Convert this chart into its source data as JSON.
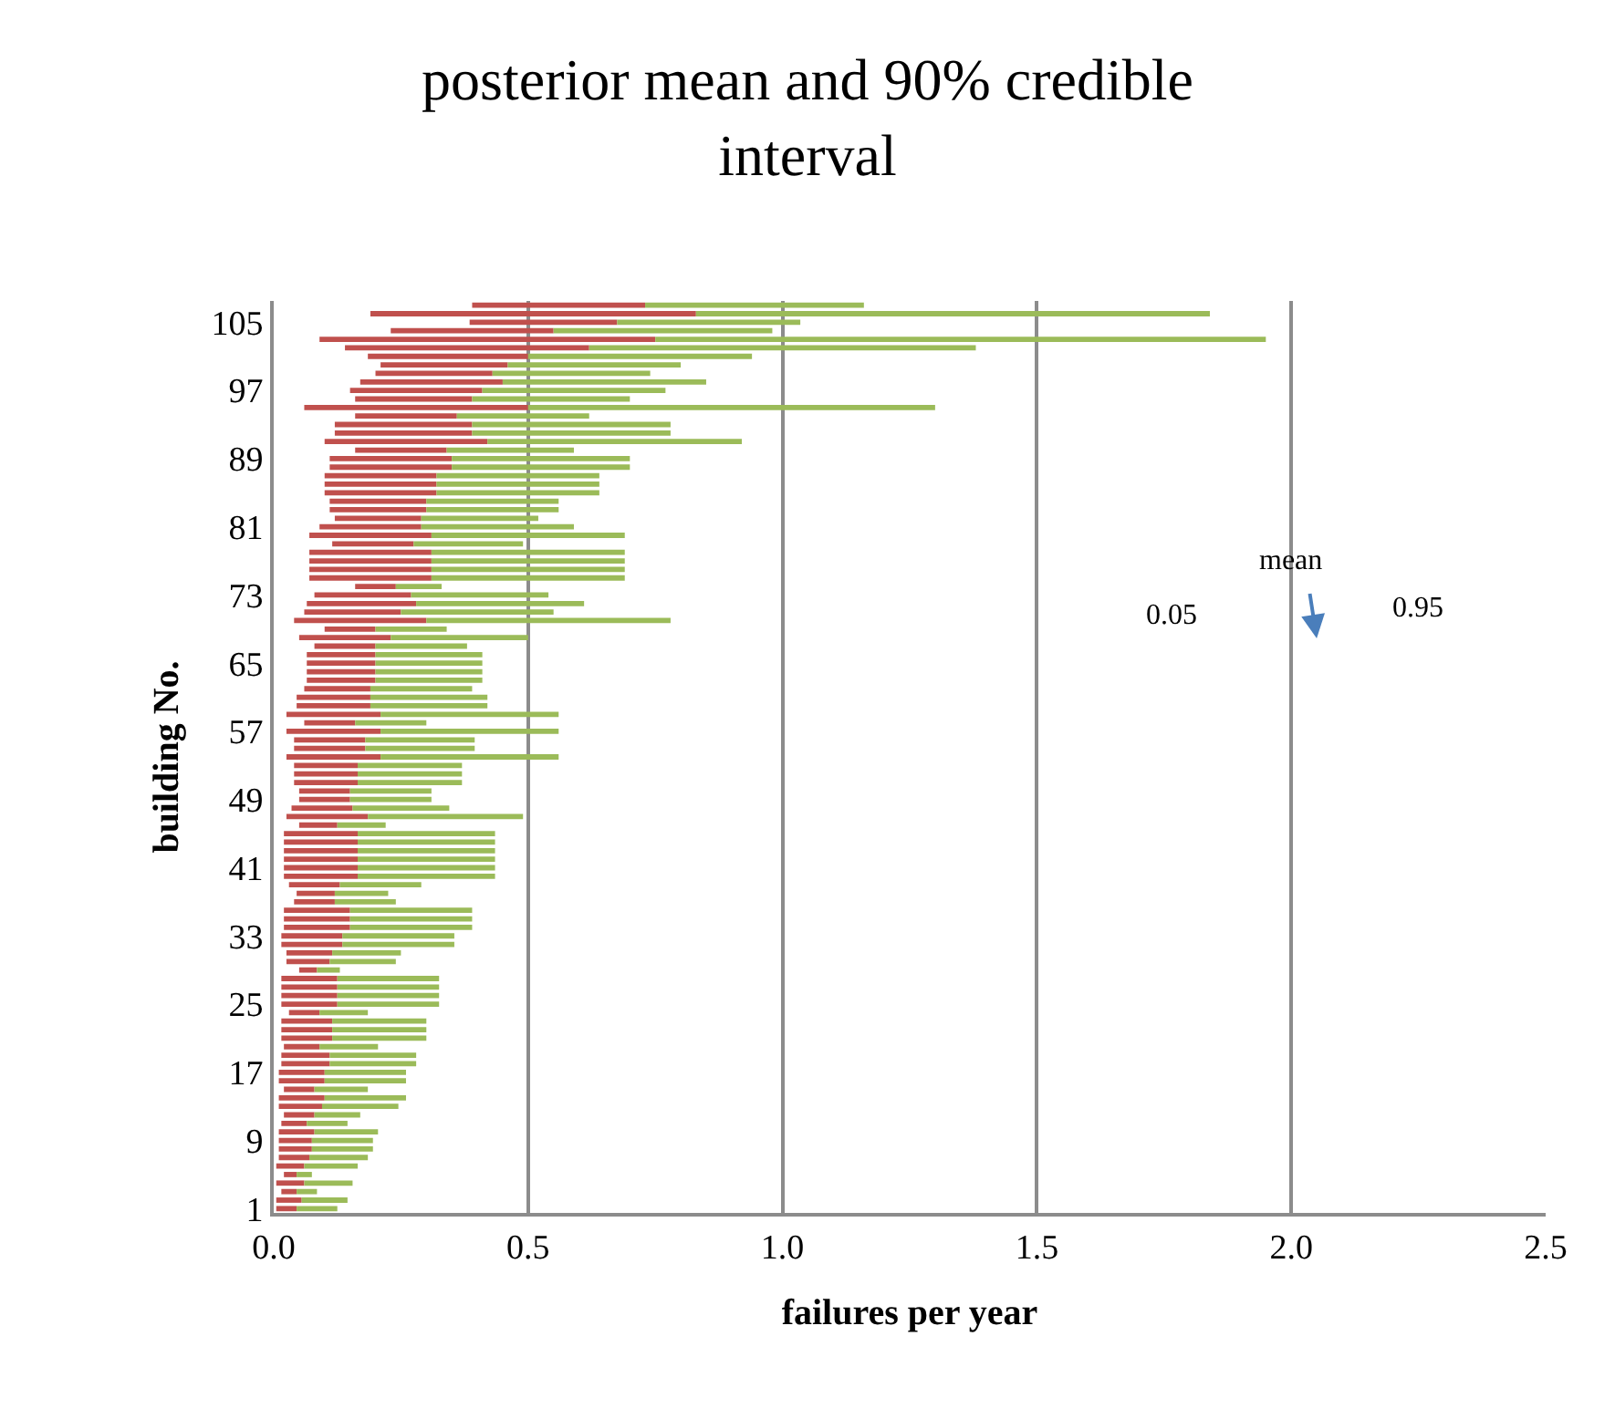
{
  "chart_data": {
    "type": "bar",
    "orientation": "horizontal",
    "title": "posterior mean and 90% credible interval",
    "xlabel": "failures per year",
    "ylabel": "building No.",
    "categories": [
      null,
      null,
      "105",
      null,
      null,
      null,
      null,
      null,
      null,
      null,
      "97",
      null,
      null,
      null,
      null,
      null,
      null,
      null,
      "89",
      null,
      null,
      null,
      null,
      null,
      null,
      null,
      "81",
      null,
      null,
      null,
      null,
      null,
      null,
      null,
      "73",
      null,
      null,
      null,
      null,
      null,
      null,
      null,
      "65",
      null,
      null,
      null,
      null,
      null,
      null,
      null,
      "57",
      null,
      null,
      null,
      null,
      null,
      null,
      null,
      "49",
      null,
      null,
      null,
      null,
      null,
      null,
      null,
      "41",
      null,
      null,
      null,
      null,
      null,
      null,
      null,
      "33",
      null,
      null,
      null,
      null,
      null,
      null,
      null,
      "25",
      null,
      null,
      null,
      null,
      null,
      null,
      null,
      "17",
      null,
      null,
      null,
      null,
      null,
      null,
      null,
      "9",
      null,
      null,
      null,
      null,
      null,
      null,
      null,
      "1"
    ],
    "series": [
      {
        "color": "#c0504d",
        "base": [
          0.39,
          0.19,
          0.385,
          0.23,
          0.09,
          0.14,
          0.185,
          0.21,
          0.2,
          0.17,
          0.15,
          0.16,
          0.06,
          0.16,
          0.12,
          0.12,
          0.1,
          0.16,
          0.11,
          0.11,
          0.1,
          0.1,
          0.1,
          0.11,
          0.11,
          0.12,
          0.09,
          0.07,
          0.115,
          0.07,
          0.07,
          0.07,
          0.07,
          0.16,
          0.08,
          0.065,
          0.06,
          0.04,
          0.1,
          0.05,
          0.08,
          0.065,
          0.065,
          0.065,
          0.065,
          0.06,
          0.045,
          0.045,
          0.025,
          0.06,
          0.025,
          0.04,
          0.04,
          0.025,
          0.04,
          0.04,
          0.04,
          0.05,
          0.05,
          0.035,
          0.025,
          0.05,
          0.02,
          0.02,
          0.02,
          0.02,
          0.02,
          0.02,
          0.03,
          0.045,
          0.04,
          0.02,
          0.02,
          0.02,
          0.015,
          0.015,
          0.025,
          0.025,
          0.05,
          0.015,
          0.015,
          0.015,
          0.015,
          0.03,
          0.015,
          0.015,
          0.015,
          0.02,
          0.015,
          0.015,
          0.01,
          0.01,
          0.02,
          0.01,
          0.01,
          0.02,
          0.015,
          0.01,
          0.01,
          0.01,
          0.01,
          0.005,
          0.02,
          0.005,
          0.015,
          0.005,
          0.005
        ],
        "values": [
          0.34,
          0.64,
          0.29,
          0.32,
          0.66,
          0.48,
          0.315,
          0.25,
          0.23,
          0.28,
          0.26,
          0.23,
          0.44,
          0.2,
          0.27,
          0.27,
          0.32,
          0.18,
          0.24,
          0.24,
          0.22,
          0.22,
          0.22,
          0.19,
          0.19,
          0.17,
          0.2,
          0.24,
          0.16,
          0.24,
          0.24,
          0.24,
          0.24,
          0.08,
          0.19,
          0.215,
          0.19,
          0.26,
          0.1,
          0.18,
          0.12,
          0.135,
          0.135,
          0.135,
          0.135,
          0.13,
          0.145,
          0.145,
          0.185,
          0.1,
          0.185,
          0.14,
          0.14,
          0.185,
          0.125,
          0.125,
          0.125,
          0.1,
          0.1,
          0.12,
          0.16,
          0.075,
          0.145,
          0.145,
          0.145,
          0.145,
          0.145,
          0.145,
          0.1,
          0.075,
          0.08,
          0.13,
          0.13,
          0.13,
          0.12,
          0.12,
          0.09,
          0.085,
          0.035,
          0.11,
          0.11,
          0.11,
          0.11,
          0.06,
          0.1,
          0.1,
          0.1,
          0.07,
          0.095,
          0.095,
          0.09,
          0.09,
          0.06,
          0.09,
          0.085,
          0.06,
          0.05,
          0.07,
          0.065,
          0.065,
          0.06,
          0.055,
          0.025,
          0.055,
          0.03,
          0.05,
          0.04
        ]
      },
      {
        "color": "#9bbb59",
        "base": [
          0.73,
          0.83,
          0.675,
          0.55,
          0.75,
          0.62,
          0.5,
          0.46,
          0.43,
          0.45,
          0.41,
          0.39,
          0.5,
          0.36,
          0.39,
          0.39,
          0.42,
          0.34,
          0.35,
          0.35,
          0.32,
          0.32,
          0.32,
          0.3,
          0.3,
          0.29,
          0.29,
          0.31,
          0.275,
          0.31,
          0.31,
          0.31,
          0.31,
          0.24,
          0.27,
          0.28,
          0.25,
          0.3,
          0.2,
          0.23,
          0.2,
          0.2,
          0.2,
          0.2,
          0.2,
          0.19,
          0.19,
          0.19,
          0.21,
          0.16,
          0.21,
          0.18,
          0.18,
          0.21,
          0.165,
          0.165,
          0.165,
          0.15,
          0.15,
          0.155,
          0.185,
          0.125,
          0.165,
          0.165,
          0.165,
          0.165,
          0.165,
          0.165,
          0.13,
          0.12,
          0.12,
          0.15,
          0.15,
          0.15,
          0.135,
          0.135,
          0.115,
          0.11,
          0.085,
          0.125,
          0.125,
          0.125,
          0.125,
          0.09,
          0.115,
          0.115,
          0.115,
          0.09,
          0.11,
          0.11,
          0.1,
          0.1,
          0.08,
          0.1,
          0.095,
          0.08,
          0.065,
          0.08,
          0.075,
          0.075,
          0.07,
          0.06,
          0.045,
          0.06,
          0.045,
          0.055,
          0.045
        ],
        "values": [
          0.43,
          1.01,
          0.36,
          0.43,
          1.2,
          0.76,
          0.44,
          0.34,
          0.31,
          0.4,
          0.36,
          0.31,
          0.8,
          0.26,
          0.39,
          0.39,
          0.5,
          0.25,
          0.35,
          0.35,
          0.32,
          0.32,
          0.32,
          0.26,
          0.26,
          0.23,
          0.3,
          0.38,
          0.215,
          0.38,
          0.38,
          0.38,
          0.38,
          0.09,
          0.27,
          0.33,
          0.3,
          0.48,
          0.14,
          0.27,
          0.18,
          0.21,
          0.21,
          0.21,
          0.21,
          0.2,
          0.23,
          0.23,
          0.35,
          0.14,
          0.35,
          0.215,
          0.215,
          0.35,
          0.205,
          0.205,
          0.205,
          0.16,
          0.16,
          0.19,
          0.305,
          0.095,
          0.27,
          0.27,
          0.27,
          0.27,
          0.27,
          0.27,
          0.16,
          0.105,
          0.12,
          0.24,
          0.24,
          0.24,
          0.22,
          0.22,
          0.135,
          0.13,
          0.045,
          0.2,
          0.2,
          0.2,
          0.2,
          0.095,
          0.185,
          0.185,
          0.185,
          0.115,
          0.17,
          0.17,
          0.16,
          0.16,
          0.105,
          0.16,
          0.15,
          0.09,
          0.08,
          0.125,
          0.12,
          0.12,
          0.115,
          0.105,
          0.03,
          0.095,
          0.04,
          0.09,
          0.08
        ]
      }
    ],
    "xlim": [
      0,
      2.5
    ],
    "xticks": [
      {
        "value": 0,
        "label": "0.0"
      },
      {
        "value": 0.5,
        "label": "0.5"
      },
      {
        "value": 1,
        "label": "1.0"
      },
      {
        "value": 1.5,
        "label": "1.5"
      },
      {
        "value": 2,
        "label": "2.0"
      },
      {
        "value": 2.5,
        "label": "2.5"
      }
    ],
    "grid": "x",
    "annotations": [
      "0.05",
      "mean",
      "0.95"
    ]
  }
}
